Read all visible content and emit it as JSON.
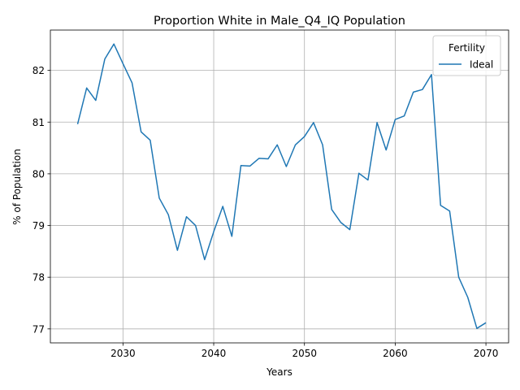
{
  "chart_data": {
    "type": "line",
    "title": "Proportion White in Male_Q4_IQ Population",
    "xlabel": "Years",
    "ylabel": "% of Population",
    "xlim": [
      2022,
      2072.5
    ],
    "ylim": [
      76.73,
      82.78
    ],
    "xticks": [
      2030,
      2040,
      2050,
      2060,
      2070
    ],
    "yticks": [
      77,
      78,
      79,
      80,
      81,
      82
    ],
    "grid": true,
    "legend": {
      "title": "Fertility",
      "position": "top-right"
    },
    "colors": {
      "series": "#1f77b4",
      "grid": "#b0b0b0"
    },
    "series": [
      {
        "name": "Ideal",
        "x": [
          2025,
          2026,
          2027,
          2028,
          2029,
          2030,
          2031,
          2032,
          2033,
          2034,
          2035,
          2036,
          2037,
          2038,
          2039,
          2040,
          2041,
          2042,
          2043,
          2044,
          2045,
          2046,
          2047,
          2048,
          2049,
          2050,
          2051,
          2052,
          2053,
          2054,
          2055,
          2056,
          2057,
          2058,
          2059,
          2060,
          2061,
          2062,
          2063,
          2064,
          2065,
          2066,
          2067,
          2068,
          2069,
          2070
        ],
        "y": [
          80.96,
          81.66,
          81.42,
          82.22,
          82.51,
          82.13,
          81.76,
          80.81,
          80.65,
          79.53,
          79.21,
          78.52,
          79.17,
          79.0,
          78.34,
          78.88,
          79.37,
          78.79,
          80.16,
          80.15,
          80.3,
          80.29,
          80.56,
          80.14,
          80.56,
          80.72,
          80.99,
          80.56,
          79.31,
          79.06,
          78.92,
          80.01,
          79.88,
          80.99,
          80.46,
          81.05,
          81.12,
          81.58,
          81.63,
          81.92,
          79.39,
          79.28,
          78.0,
          77.61,
          77.01,
          77.12
        ]
      }
    ]
  }
}
